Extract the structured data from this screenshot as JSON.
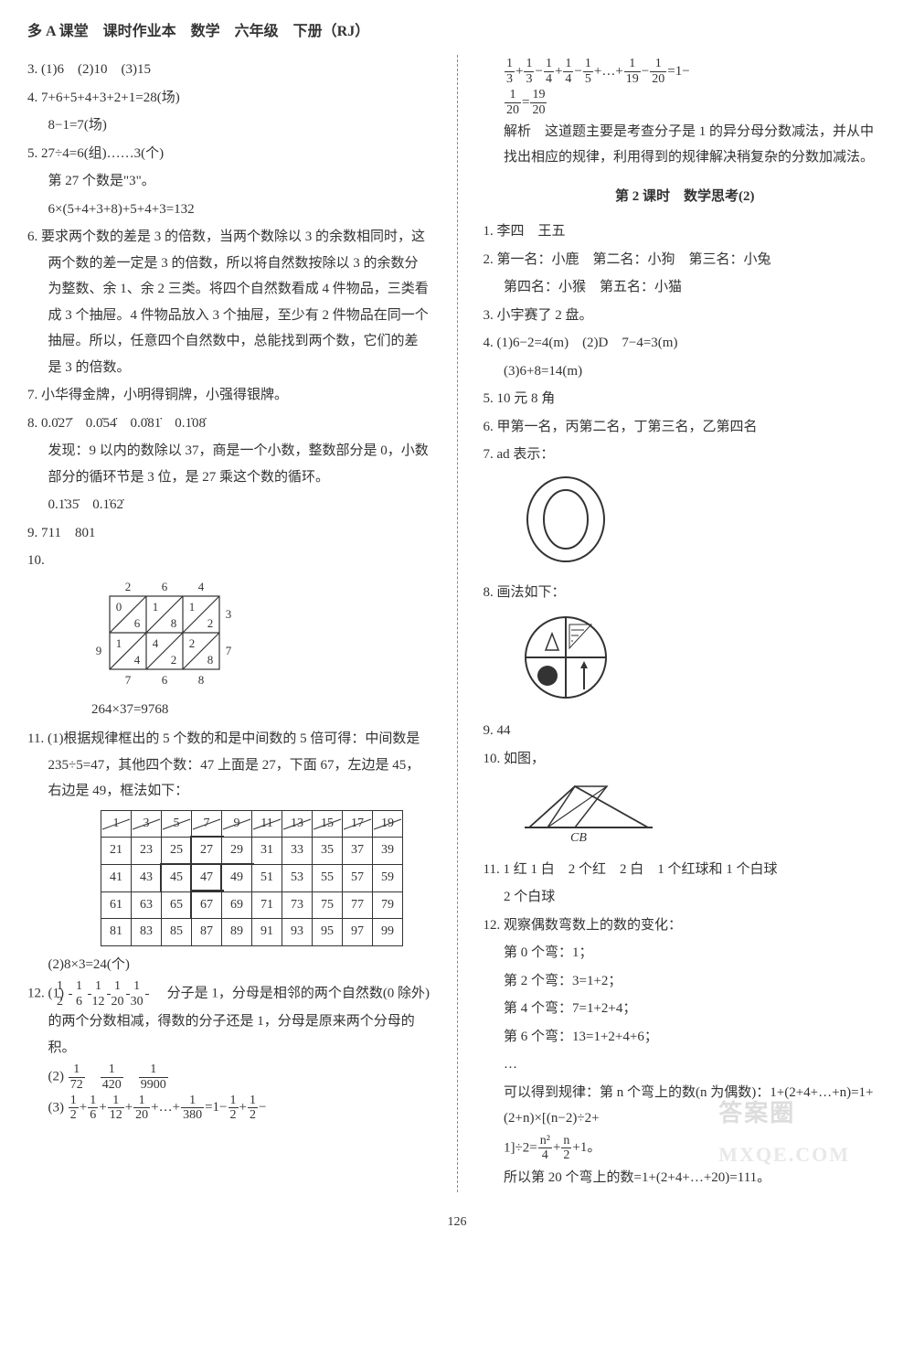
{
  "header": "多 A 课堂　课时作业本　数学　六年级　下册（RJ）",
  "footer_page": "126",
  "left": {
    "q3": "3. (1)6　(2)10　(3)15",
    "q4a": "4. 7+6+5+4+3+2+1=28(场)",
    "q4b": "8−1=7(场)",
    "q5a": "5. 27÷4=6(组)……3(个)",
    "q5b": "第 27 个数是\"3\"。",
    "q5c": "6×(5+4+3+8)+5+4+3=132",
    "q6": "6. 要求两个数的差是 3 的倍数，当两个数除以 3 的余数相同时，这两个数的差一定是 3 的倍数，所以将自然数按除以 3 的余数分为整数、余 1、余 2 三类。将四个自然数看成 4 件物品，三类看成 3 个抽屉。4 件物品放入 3 个抽屉，至少有 2 件物品在同一个抽屉。所以，任意四个自然数中，总能找到两个数，它们的差是 3 的倍数。",
    "q7": "7. 小华得金牌，小明得铜牌，小强得银牌。",
    "q8a": "8. 0.0̇27̇　0.0̇54̇　0.0̇81̇　0.1̇08̇",
    "q8b": "发现：9 以内的数除以 37，商是一个小数，整数部分是 0，小数部分的循环节是 3 位，是 27 乘这个数的循环。",
    "q8c": "0.1̇35̇　0.1̇62̇",
    "q9": "9. 711　801",
    "q10_label": "10.",
    "q10_result": "264×37=9768",
    "q11a": "11. (1)根据规律框出的 5 个数的和是中间数的 5 倍可得：中间数是 235÷5=47，其他四个数：47 上面是 27，下面 67，左边是 45，右边是 49，框法如下：",
    "q11_table": {
      "rows": [
        [
          "1",
          "3",
          "5",
          "7",
          "9",
          "11",
          "13",
          "15",
          "17",
          "19"
        ],
        [
          "21",
          "23",
          "25",
          "27",
          "29",
          "31",
          "33",
          "35",
          "37",
          "39"
        ],
        [
          "41",
          "43",
          "45",
          "47",
          "49",
          "51",
          "53",
          "55",
          "57",
          "59"
        ],
        [
          "61",
          "63",
          "65",
          "67",
          "69",
          "71",
          "73",
          "75",
          "77",
          "79"
        ],
        [
          "81",
          "83",
          "85",
          "87",
          "89",
          "91",
          "93",
          "95",
          "97",
          "99"
        ]
      ],
      "highlight_cells": [
        [
          1,
          3
        ],
        [
          2,
          2
        ],
        [
          2,
          3
        ],
        [
          2,
          4
        ],
        [
          3,
          3
        ]
      ]
    },
    "q11b": "(2)8×3=24(个)",
    "q12_lead": "12. (1)",
    "q12_fracs": [
      [
        "1",
        "2"
      ],
      [
        "1",
        "6"
      ],
      [
        "1",
        "12"
      ],
      [
        "1",
        "20"
      ],
      [
        "1",
        "30"
      ]
    ],
    "q12_tail": "　分子是 1，分母是相邻的两个自然数(0 除外)的两个分数相减，得数的分子还是 1，分母是原来两个分母的积。",
    "q12_2_lead": "(2)",
    "q12_2_fracs": [
      [
        "1",
        "72"
      ],
      [
        "1",
        "420"
      ],
      [
        "1",
        "9900"
      ]
    ],
    "q12_3_lead": "(3)",
    "q12_3_expr_a": [
      [
        "1",
        "2"
      ],
      "+",
      [
        "1",
        "6"
      ],
      "+",
      [
        "1",
        "12"
      ],
      "+",
      [
        "1",
        "20"
      ],
      "+…+",
      [
        "1",
        "380"
      ],
      "=1−",
      [
        "1",
        "2"
      ],
      "+",
      [
        "1",
        "2"
      ],
      "−"
    ]
  },
  "right": {
    "cont_a": [
      [
        "1",
        "3"
      ],
      "+",
      [
        "1",
        "3"
      ],
      "−",
      [
        "1",
        "4"
      ],
      "+",
      [
        "1",
        "4"
      ],
      "−",
      [
        "1",
        "5"
      ],
      "+…+",
      [
        "1",
        "19"
      ],
      "−",
      [
        "1",
        "20"
      ],
      "=1−"
    ],
    "cont_b": [
      [
        "1",
        "20"
      ],
      "=",
      [
        "19",
        "20"
      ]
    ],
    "analysis": "解析　这道题主要是考查分子是 1 的异分母分数减法，并从中找出相应的规律，利用得到的规律解决稍复杂的分数加减法。",
    "section": "第 2 课时　数学思考(2)",
    "r1": "1. 李四　王五",
    "r2a": "2. 第一名：小鹿　第二名：小狗　第三名：小兔",
    "r2b": "第四名：小猴　第五名：小猫",
    "r3": "3. 小宇赛了 2 盘。",
    "r4a": "4. (1)6−2=4(m)　(2)D　7−4=3(m)",
    "r4b": "(3)6+8=14(m)",
    "r5": "5. 10 元 8 角",
    "r6": "6. 甲第一名，丙第二名，丁第三名，乙第四名",
    "r7_lead": "7. ad 表示：",
    "r8_lead": "8. 画法如下：",
    "r9": "9. 44",
    "r10_lead": "10. 如图，",
    "r10_label": "CB",
    "r11a": "11. 1 红 1 白　2 个红　2 白　1 个红球和 1 个白球",
    "r11b": "2 个白球",
    "r12a": "12. 观察偶数弯数上的数的变化：",
    "r12b": "第 0 个弯：1；",
    "r12c": "第 2 个弯：3=1+2；",
    "r12d": "第 4 个弯：7=1+2+4；",
    "r12e": "第 6 个弯：13=1+2+4+6；",
    "r12f": "…",
    "r12g_a": "可以得到规律：第 n 个弯上的数(n 为偶数)：1+(2+4+…+n)=1+(2+n)×[(n−2)÷2+",
    "r12g_b_lead": "1]÷2=",
    "r12g_fracs": [
      [
        "n²",
        "4"
      ],
      "+",
      [
        "n",
        "2"
      ],
      "+1。"
    ],
    "r12h": "所以第 20 个弯上的数=1+(2+4+…+20)=111。"
  },
  "lattice": {
    "top": [
      "2",
      "6",
      "4"
    ],
    "left": [
      "9"
    ],
    "right": [
      "3",
      "7"
    ],
    "bottom": [
      "7",
      "6",
      "8"
    ],
    "cells": [
      [
        [
          "0",
          "6"
        ],
        [
          "1",
          "8"
        ],
        [
          "1",
          "2"
        ]
      ],
      [
        [
          "1",
          "4"
        ],
        [
          "4",
          "2"
        ],
        [
          "2",
          "8"
        ]
      ]
    ]
  },
  "watermark1": "答案圈",
  "watermark2": "MXQE.COM"
}
